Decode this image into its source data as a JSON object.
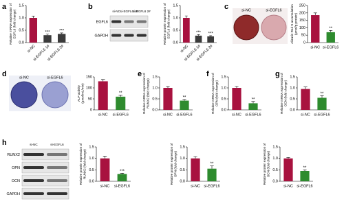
{
  "panels": [
    "a",
    "b",
    "c",
    "d",
    "e",
    "f",
    "g",
    "h"
  ],
  "blots": [
    {
      "proteins": [
        "EGFL6",
        "GAPDH"
      ],
      "lanes": [
        "si-NC",
        "si-EGFL6 1#",
        "si-EGFL6 2#"
      ]
    },
    {
      "proteins": [
        "RUNX2",
        "OPN",
        "OCN",
        "GAPDH"
      ],
      "lanes": [
        "si-NC",
        "si-EGFL6"
      ]
    }
  ],
  "photos": [
    {
      "lanes": [
        "si-NC",
        "si-EGFL6"
      ]
    },
    {
      "lanes": [
        "si-NC",
        "si-EGFL6"
      ]
    }
  ],
  "chart_data": [
    {
      "type": "bar",
      "ylabel": [
        "Relative mRNA expression of",
        "EGFL6 (fold change)"
      ],
      "categories": [
        "si-NC",
        "si-EGFL6 1#",
        "si-EGFL6 2#"
      ],
      "values": [
        1.0,
        0.3,
        0.35
      ],
      "errors": [
        0.07,
        0.04,
        0.04
      ],
      "significance": [
        null,
        "***",
        "***"
      ],
      "colors": [
        "#a8123f",
        "#3b3b3b",
        "#3b3b3b"
      ],
      "ylim": [
        0,
        1.5
      ],
      "yticks": [
        {
          "value": 0,
          "label": "0.0"
        },
        {
          "value": 0.5,
          "label": "0.5"
        },
        {
          "value": 1,
          "label": "1.0"
        },
        {
          "value": 1.5,
          "label": "1.5"
        }
      ]
    },
    {
      "type": "bar",
      "ylabel": [
        "Relative protein expression of",
        "EGFL6 (fold change)"
      ],
      "categories": [
        "si-NC",
        "si-EGFL6 1#",
        "si-EGFL6 2#"
      ],
      "values": [
        1.0,
        0.28,
        0.25
      ],
      "errors": [
        0.08,
        0.04,
        0.03
      ],
      "significance": [
        null,
        "***",
        "***"
      ],
      "colors": [
        "#a8123f",
        "#3b3b3b",
        "#3b3b3b"
      ],
      "ylim": [
        0,
        1.5
      ],
      "yticks": [
        {
          "value": 0,
          "label": "0.0"
        },
        {
          "value": 0.5,
          "label": "0.5"
        },
        {
          "value": 1,
          "label": "1.0"
        },
        {
          "value": 1.5,
          "label": "1.5"
        }
      ]
    },
    {
      "type": "bar",
      "ylabel": [
        "Alizarin Red S accumulation",
        "(µmol/g protein)"
      ],
      "categories": [
        "si-NC",
        "si-EGFL6"
      ],
      "values": [
        185,
        70
      ],
      "errors": [
        15,
        12
      ],
      "significance": [
        null,
        "**"
      ],
      "colors": [
        "#a8123f",
        "#2e8b2e"
      ],
      "ylim": [
        0,
        250
      ],
      "yticks": [
        0,
        50,
        100,
        150,
        200,
        250
      ]
    },
    {
      "type": "bar",
      "ylabel": [
        "ALP activity",
        "(µmol/mL/min)"
      ],
      "categories": [
        "si-NC",
        "si-EGFL6"
      ],
      "values": [
        130,
        60
      ],
      "errors": [
        8,
        7
      ],
      "significance": [
        null,
        "**"
      ],
      "colors": [
        "#a8123f",
        "#2e8b2e"
      ],
      "ylim": [
        0,
        150
      ],
      "yticks": [
        0,
        50,
        100,
        150
      ]
    },
    {
      "type": "bar",
      "ylabel": [
        "Relative mRNA expression of",
        "RUNX2 (fold change)"
      ],
      "categories": [
        "si-NC",
        "si-EGFL6"
      ],
      "values": [
        1.0,
        0.42
      ],
      "errors": [
        0.06,
        0.05
      ],
      "significance": [
        null,
        "**"
      ],
      "colors": [
        "#a8123f",
        "#2e8b2e"
      ],
      "ylim": [
        0,
        1.5
      ],
      "yticks": [
        {
          "value": 0,
          "label": "0.0"
        },
        {
          "value": 0.5,
          "label": "0.5"
        },
        {
          "value": 1,
          "label": "1.0"
        },
        {
          "value": 1.5,
          "label": "1.5"
        }
      ]
    },
    {
      "type": "bar",
      "ylabel": [
        "Relative mRNA expression of",
        "OPN (fold change)"
      ],
      "categories": [
        "si-NC",
        "si-EGFL6"
      ],
      "values": [
        1.0,
        0.3
      ],
      "errors": [
        0.07,
        0.08
      ],
      "significance": [
        null,
        "**"
      ],
      "colors": [
        "#a8123f",
        "#2e8b2e"
      ],
      "ylim": [
        0,
        1.5
      ],
      "yticks": [
        {
          "value": 0,
          "label": "0.0"
        },
        {
          "value": 0.5,
          "label": "0.5"
        },
        {
          "value": 1,
          "label": "1.0"
        },
        {
          "value": 1.5,
          "label": "1.5"
        }
      ]
    },
    {
      "type": "bar",
      "ylabel": [
        "Relative mRNA expression of",
        "OCN (fold change)"
      ],
      "categories": [
        "si-NC",
        "si-EGFL6"
      ],
      "values": [
        0.95,
        0.55
      ],
      "errors": [
        0.09,
        0.1
      ],
      "significance": [
        null,
        "**"
      ],
      "colors": [
        "#a8123f",
        "#2e8b2e"
      ],
      "ylim": [
        0,
        1.5
      ],
      "yticks": [
        {
          "value": 0,
          "label": "0.0"
        },
        {
          "value": 0.5,
          "label": "0.5"
        },
        {
          "value": 1,
          "label": "1.0"
        },
        {
          "value": 1.5,
          "label": "1.5"
        }
      ]
    },
    {
      "type": "bar",
      "ylabel": [
        "Relative protein expression of",
        "RUNX2 (fold change)"
      ],
      "categories": [
        "si-NC",
        "si-EGFL6"
      ],
      "values": [
        1.0,
        0.32
      ],
      "errors": [
        0.1,
        0.03
      ],
      "significance": [
        null,
        "***"
      ],
      "colors": [
        "#a8123f",
        "#2e8b2e"
      ],
      "ylim": [
        0,
        1.5
      ],
      "yticks": [
        {
          "value": 0,
          "label": "0.0"
        },
        {
          "value": 0.5,
          "label": "0.5"
        },
        {
          "value": 1,
          "label": "1.0"
        },
        {
          "value": 1.5,
          "label": "1.5"
        }
      ]
    },
    {
      "type": "bar",
      "ylabel": [
        "Relative protein expression of",
        "OPN (fold change)"
      ],
      "categories": [
        "si-NC",
        "si-EGFL6"
      ],
      "values": [
        1.0,
        0.55
      ],
      "errors": [
        0.08,
        0.12
      ],
      "significance": [
        null,
        "**"
      ],
      "colors": [
        "#a8123f",
        "#2e8b2e"
      ],
      "ylim": [
        0,
        1.5
      ],
      "yticks": [
        {
          "value": 0,
          "label": "0.0"
        },
        {
          "value": 0.5,
          "label": "0.5"
        },
        {
          "value": 1,
          "label": "1.0"
        },
        {
          "value": 1.5,
          "label": "1.5"
        }
      ]
    },
    {
      "type": "bar",
      "ylabel": [
        "Relative protein expression of",
        "OCN (fold change)"
      ],
      "categories": [
        "si-NC",
        "si-EGFL6"
      ],
      "values": [
        1.0,
        0.45
      ],
      "errors": [
        0.04,
        0.05
      ],
      "significance": [
        null,
        "**"
      ],
      "colors": [
        "#a8123f",
        "#2e8b2e"
      ],
      "ylim": [
        0,
        1.5
      ],
      "yticks": [
        {
          "value": 0,
          "label": "0.0"
        },
        {
          "value": 0.5,
          "label": "0.5"
        },
        {
          "value": 1,
          "label": "1.0"
        },
        {
          "value": 1.5,
          "label": "1.5"
        }
      ]
    }
  ]
}
